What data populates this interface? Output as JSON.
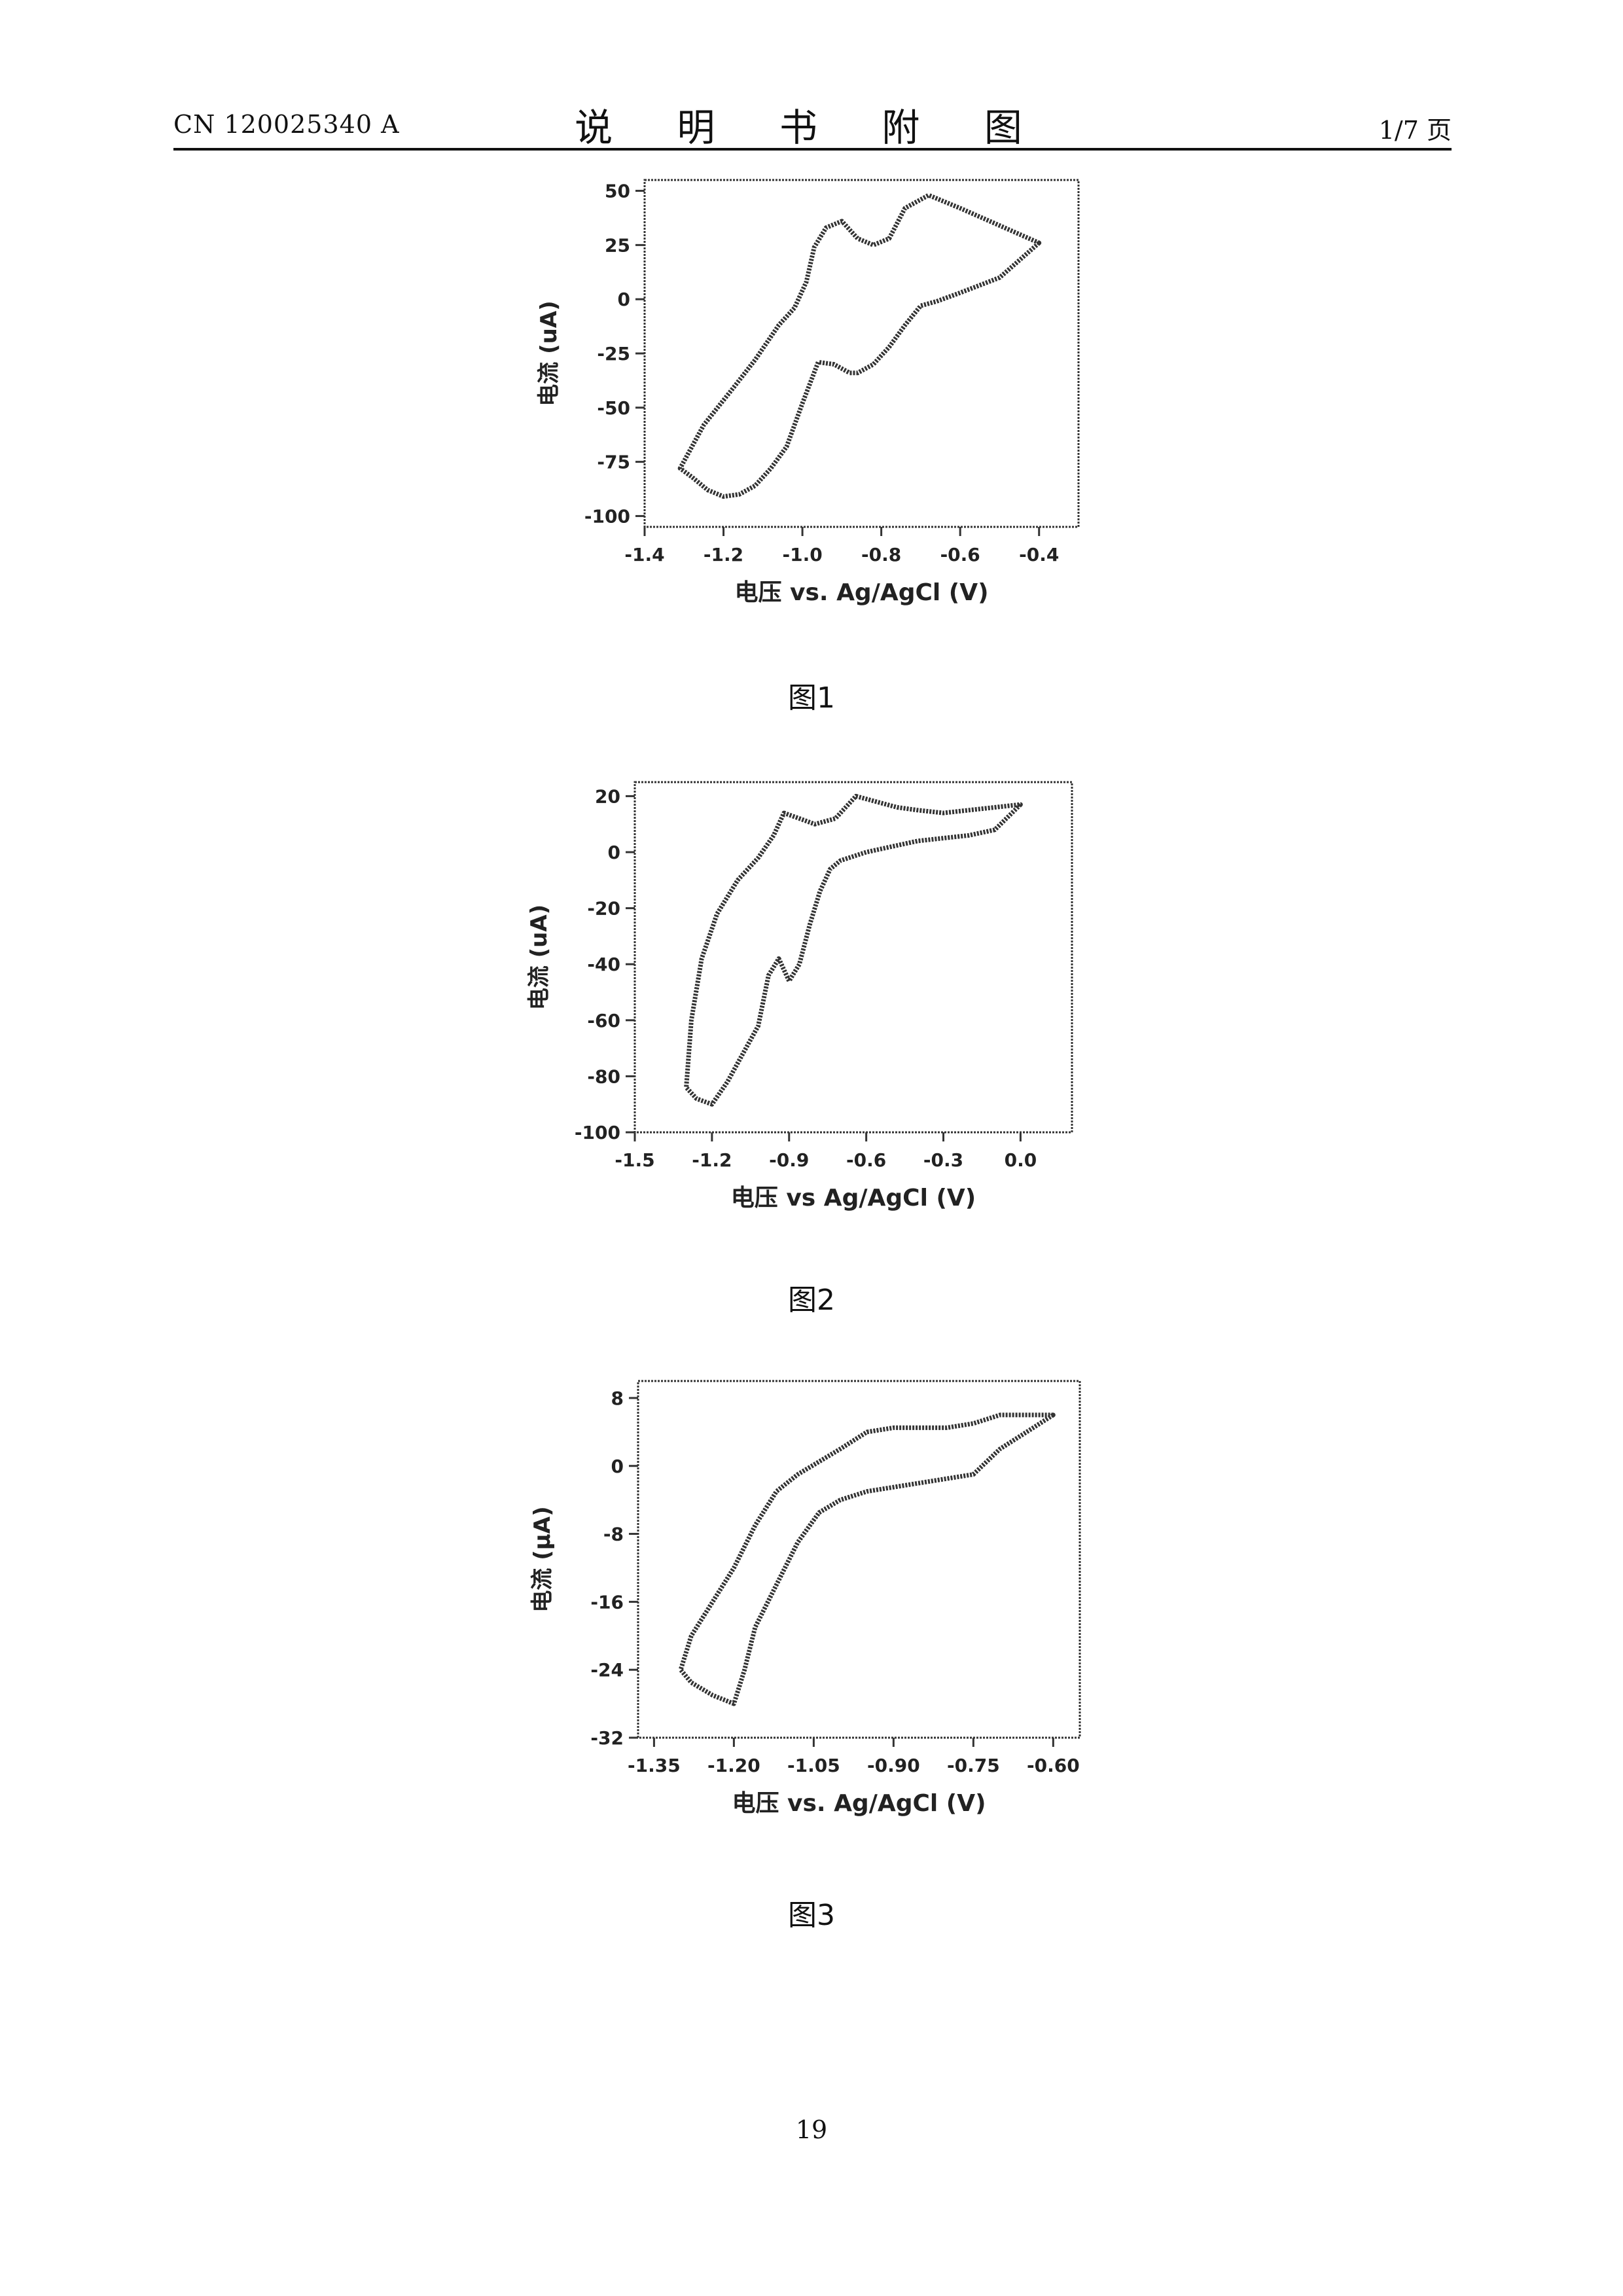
{
  "header": {
    "patent_number": "CN 120025340 A",
    "title": "说 明 书 附 图",
    "page_of": "1/7 页"
  },
  "page_number": "19",
  "figures": [
    {
      "caption": "图1"
    },
    {
      "caption": "图2"
    },
    {
      "caption": "图3"
    }
  ],
  "chart_data": [
    {
      "type": "line",
      "xlabel": "电压 vs. Ag/AgCl (V)",
      "ylabel": "电流 (uA)",
      "xlim": [
        -1.4,
        -0.3
      ],
      "ylim": [
        -105,
        55
      ],
      "xticks": [
        -1.4,
        -1.2,
        -1.0,
        -0.8,
        -0.6,
        -0.4
      ],
      "xtick_labels": [
        "-1.4",
        "-1.2",
        "-1.0",
        "-0.8",
        "-0.6",
        "-0.4"
      ],
      "yticks": [
        50,
        25,
        0,
        -25,
        -50,
        -75,
        -100
      ],
      "ytick_labels": [
        "50",
        "25",
        "0",
        "-25",
        "-50",
        "-75",
        "-100"
      ],
      "series": [
        {
          "x": [
            -0.4,
            -0.5,
            -0.6,
            -0.66,
            -0.7,
            -0.74,
            -0.78,
            -0.82,
            -0.86,
            -0.88,
            -0.92,
            -0.96,
            -1.0,
            -1.04,
            -1.08,
            -1.12,
            -1.16,
            -1.2,
            -1.24,
            -1.28,
            -1.31,
            -1.25,
            -1.18,
            -1.12,
            -1.06,
            -1.02,
            -0.99,
            -0.97,
            -0.94,
            -0.9,
            -0.86,
            -0.82,
            -0.78,
            -0.74,
            -0.68,
            -0.6,
            -0.5,
            -0.4
          ],
          "y": [
            26,
            10,
            3,
            -1,
            -3,
            -12,
            -22,
            -30,
            -34,
            -34,
            -30,
            -29,
            -48,
            -68,
            -78,
            -86,
            -90,
            -91,
            -88,
            -82,
            -78,
            -58,
            -42,
            -28,
            -12,
            -4,
            8,
            24,
            33,
            36,
            28,
            25,
            28,
            42,
            48,
            42,
            34,
            26
          ]
        }
      ]
    },
    {
      "type": "line",
      "xlabel": "电压 vs Ag/AgCl (V)",
      "ylabel": "电流 (uA)",
      "xlim": [
        -1.5,
        0.2
      ],
      "ylim": [
        -100,
        25
      ],
      "xticks": [
        -1.5,
        -1.2,
        -0.9,
        -0.6,
        -0.3,
        0.0
      ],
      "xtick_labels": [
        "-1.5",
        "-1.2",
        "-0.9",
        "-0.6",
        "-0.3",
        "0.0"
      ],
      "yticks": [
        20,
        0,
        -20,
        -40,
        -60,
        -80,
        -100
      ],
      "ytick_labels": [
        "20",
        "0",
        "-20",
        "-40",
        "-60",
        "-80",
        "-100"
      ],
      "series": [
        {
          "x": [
            0.0,
            -0.1,
            -0.2,
            -0.3,
            -0.4,
            -0.5,
            -0.6,
            -0.7,
            -0.74,
            -0.78,
            -0.82,
            -0.86,
            -0.9,
            -0.94,
            -0.98,
            -1.02,
            -1.08,
            -1.14,
            -1.2,
            -1.26,
            -1.3,
            -1.28,
            -1.24,
            -1.18,
            -1.1,
            -1.02,
            -0.96,
            -0.92,
            -0.86,
            -0.8,
            -0.72,
            -0.64,
            -0.56,
            -0.48,
            -0.4,
            -0.3,
            -0.2,
            -0.1,
            0.0
          ],
          "y": [
            17,
            8,
            6,
            5,
            4,
            2,
            0,
            -3,
            -6,
            -14,
            -26,
            -40,
            -46,
            -38,
            -44,
            -62,
            -72,
            -82,
            -90,
            -88,
            -84,
            -60,
            -38,
            -22,
            -10,
            -2,
            6,
            14,
            12,
            10,
            12,
            20,
            18,
            16,
            15,
            14,
            15,
            16,
            17
          ]
        }
      ]
    },
    {
      "type": "line",
      "xlabel": "电压 vs. Ag/AgCl (V)",
      "ylabel": "电流 (μA)",
      "xlim": [
        -1.38,
        -0.55
      ],
      "ylim": [
        -32,
        10
      ],
      "xticks": [
        -1.35,
        -1.2,
        -1.05,
        -0.9,
        -0.75,
        -0.6
      ],
      "xtick_labels": [
        "-1.35",
        "-1.20",
        "-1.05",
        "-0.90",
        "-0.75",
        "-0.60"
      ],
      "yticks": [
        8,
        0,
        -8,
        -16,
        -24,
        -32
      ],
      "ytick_labels": [
        "8",
        "0",
        "-8",
        "-16",
        "-24",
        "-32"
      ],
      "series": [
        {
          "x": [
            -0.6,
            -0.65,
            -0.7,
            -0.75,
            -0.8,
            -0.85,
            -0.9,
            -0.95,
            -1.0,
            -1.04,
            -1.08,
            -1.12,
            -1.16,
            -1.18,
            -1.2,
            -1.24,
            -1.28,
            -1.3,
            -1.28,
            -1.24,
            -1.2,
            -1.16,
            -1.12,
            -1.08,
            -1.04,
            -1.0,
            -0.95,
            -0.9,
            -0.85,
            -0.8,
            -0.75,
            -0.7,
            -0.65,
            -0.6
          ],
          "y": [
            6,
            4,
            2,
            -1,
            -1.5,
            -2,
            -2.5,
            -3,
            -4,
            -5.5,
            -9,
            -14,
            -19,
            -24,
            -28,
            -27,
            -25.5,
            -24,
            -20,
            -16,
            -12,
            -7,
            -3,
            -1,
            0.5,
            2,
            4,
            4.5,
            4.5,
            4.5,
            5,
            6,
            6,
            6
          ]
        }
      ]
    }
  ]
}
